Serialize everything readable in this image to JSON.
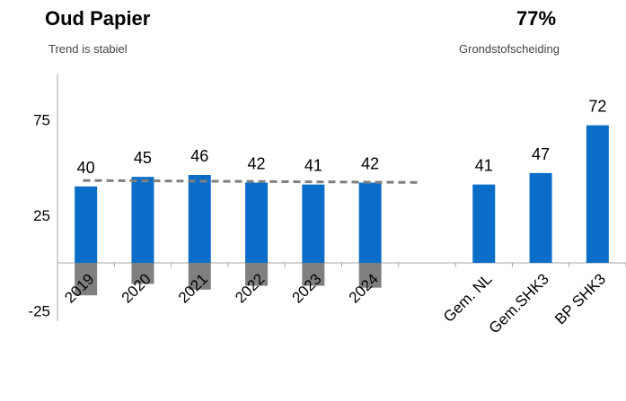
{
  "header": {
    "title": "Oud Papier",
    "subtitle": "Trend is stabiel",
    "kpi_value": "77%",
    "kpi_label": "Grondstofscheiding"
  },
  "colors": {
    "bar": "#0a6ec8",
    "negative": "#808080",
    "trend": "#808080",
    "axis": "#a6a6a6"
  },
  "chart_data": {
    "type": "bar",
    "categories": [
      "2019",
      "2020",
      "2021",
      "2022",
      "2023",
      "2024",
      "",
      "Gem. NL",
      "Gem.SHK3",
      "BP SHK3"
    ],
    "series": [
      {
        "values": [
          40,
          45,
          46,
          42,
          41,
          42,
          null,
          41,
          47,
          72
        ],
        "data_labels": true
      },
      {
        "values": [
          -17,
          -11,
          -14,
          -12,
          -12,
          -13,
          null,
          null,
          null,
          null
        ],
        "data_labels": false
      }
    ],
    "trendline": {
      "type": "linear",
      "from_category": "2019",
      "to_category": "2024",
      "style": "dashed"
    },
    "yticks": [
      "75",
      "25",
      "-25"
    ],
    "ylim": [
      -25,
      100
    ],
    "grid": false,
    "legend": "none"
  }
}
